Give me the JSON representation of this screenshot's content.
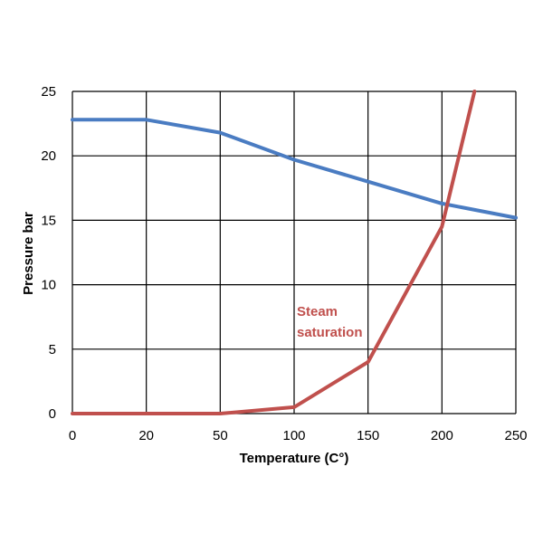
{
  "chart_data": {
    "type": "line",
    "xlabel": "Temperature (C°)",
    "ylabel": "Pressure bar",
    "xlim": [
      0,
      250
    ],
    "ylim": [
      0,
      25
    ],
    "x_categories": [
      "0",
      "20",
      "50",
      "100",
      "150",
      "200",
      "250"
    ],
    "y_ticks": [
      "0",
      "5",
      "10",
      "15",
      "20",
      "25"
    ],
    "grid": true,
    "series": [
      {
        "color": "#4a7cc2",
        "points": [
          {
            "x": "0",
            "y": 22.8
          },
          {
            "x": "20",
            "y": 22.8
          },
          {
            "x": "50",
            "y": 21.8
          },
          {
            "x": "100",
            "y": 19.7
          },
          {
            "x": "150",
            "y": 18.0
          },
          {
            "x": "200",
            "y": 16.3
          },
          {
            "x": "250",
            "y": 15.2
          }
        ]
      },
      {
        "name": "Steam saturation",
        "color": "#c0504d",
        "points": [
          {
            "x": "0",
            "y": 0
          },
          {
            "x": "20",
            "y": 0
          },
          {
            "x": "50",
            "y": 0
          },
          {
            "x": "100",
            "y": 0.5
          },
          {
            "x": "150",
            "y": 4.0
          },
          {
            "x": "200",
            "y": 14.5
          },
          {
            "x": "222",
            "y": 25
          }
        ]
      }
    ],
    "annotation": {
      "lines": [
        "Steam",
        "saturation"
      ],
      "color": "#c0504d"
    }
  }
}
